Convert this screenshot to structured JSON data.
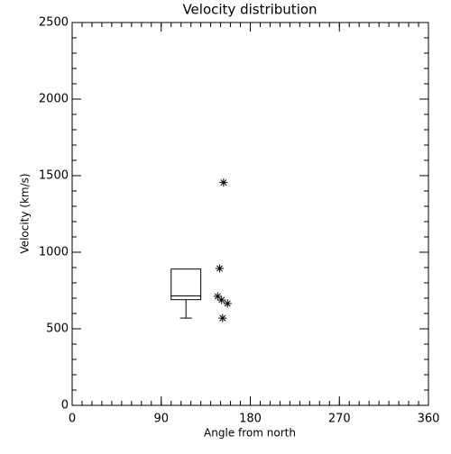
{
  "chart_data": {
    "type": "box-scatter",
    "title": "Velocity distribution",
    "x_label": "Angle from north",
    "y_label": "Velocity (km/s)",
    "xlim": [
      0,
      360
    ],
    "xticks": [
      0,
      90,
      180,
      270,
      360
    ],
    "x_minor_step": 10,
    "ylim": [
      0,
      2500
    ],
    "yticks": [
      0,
      500,
      1000,
      1500,
      2000,
      2500
    ],
    "y_minor_step": 100,
    "color": "#000000",
    "box": {
      "x": [
        100,
        130
      ],
      "low": 570,
      "q1": 690,
      "median": 715,
      "q3": 890
    },
    "points": {
      "x": [
        153,
        149,
        147,
        151,
        157,
        152
      ],
      "y": [
        1455,
        894,
        712,
        688,
        665,
        570
      ]
    }
  }
}
